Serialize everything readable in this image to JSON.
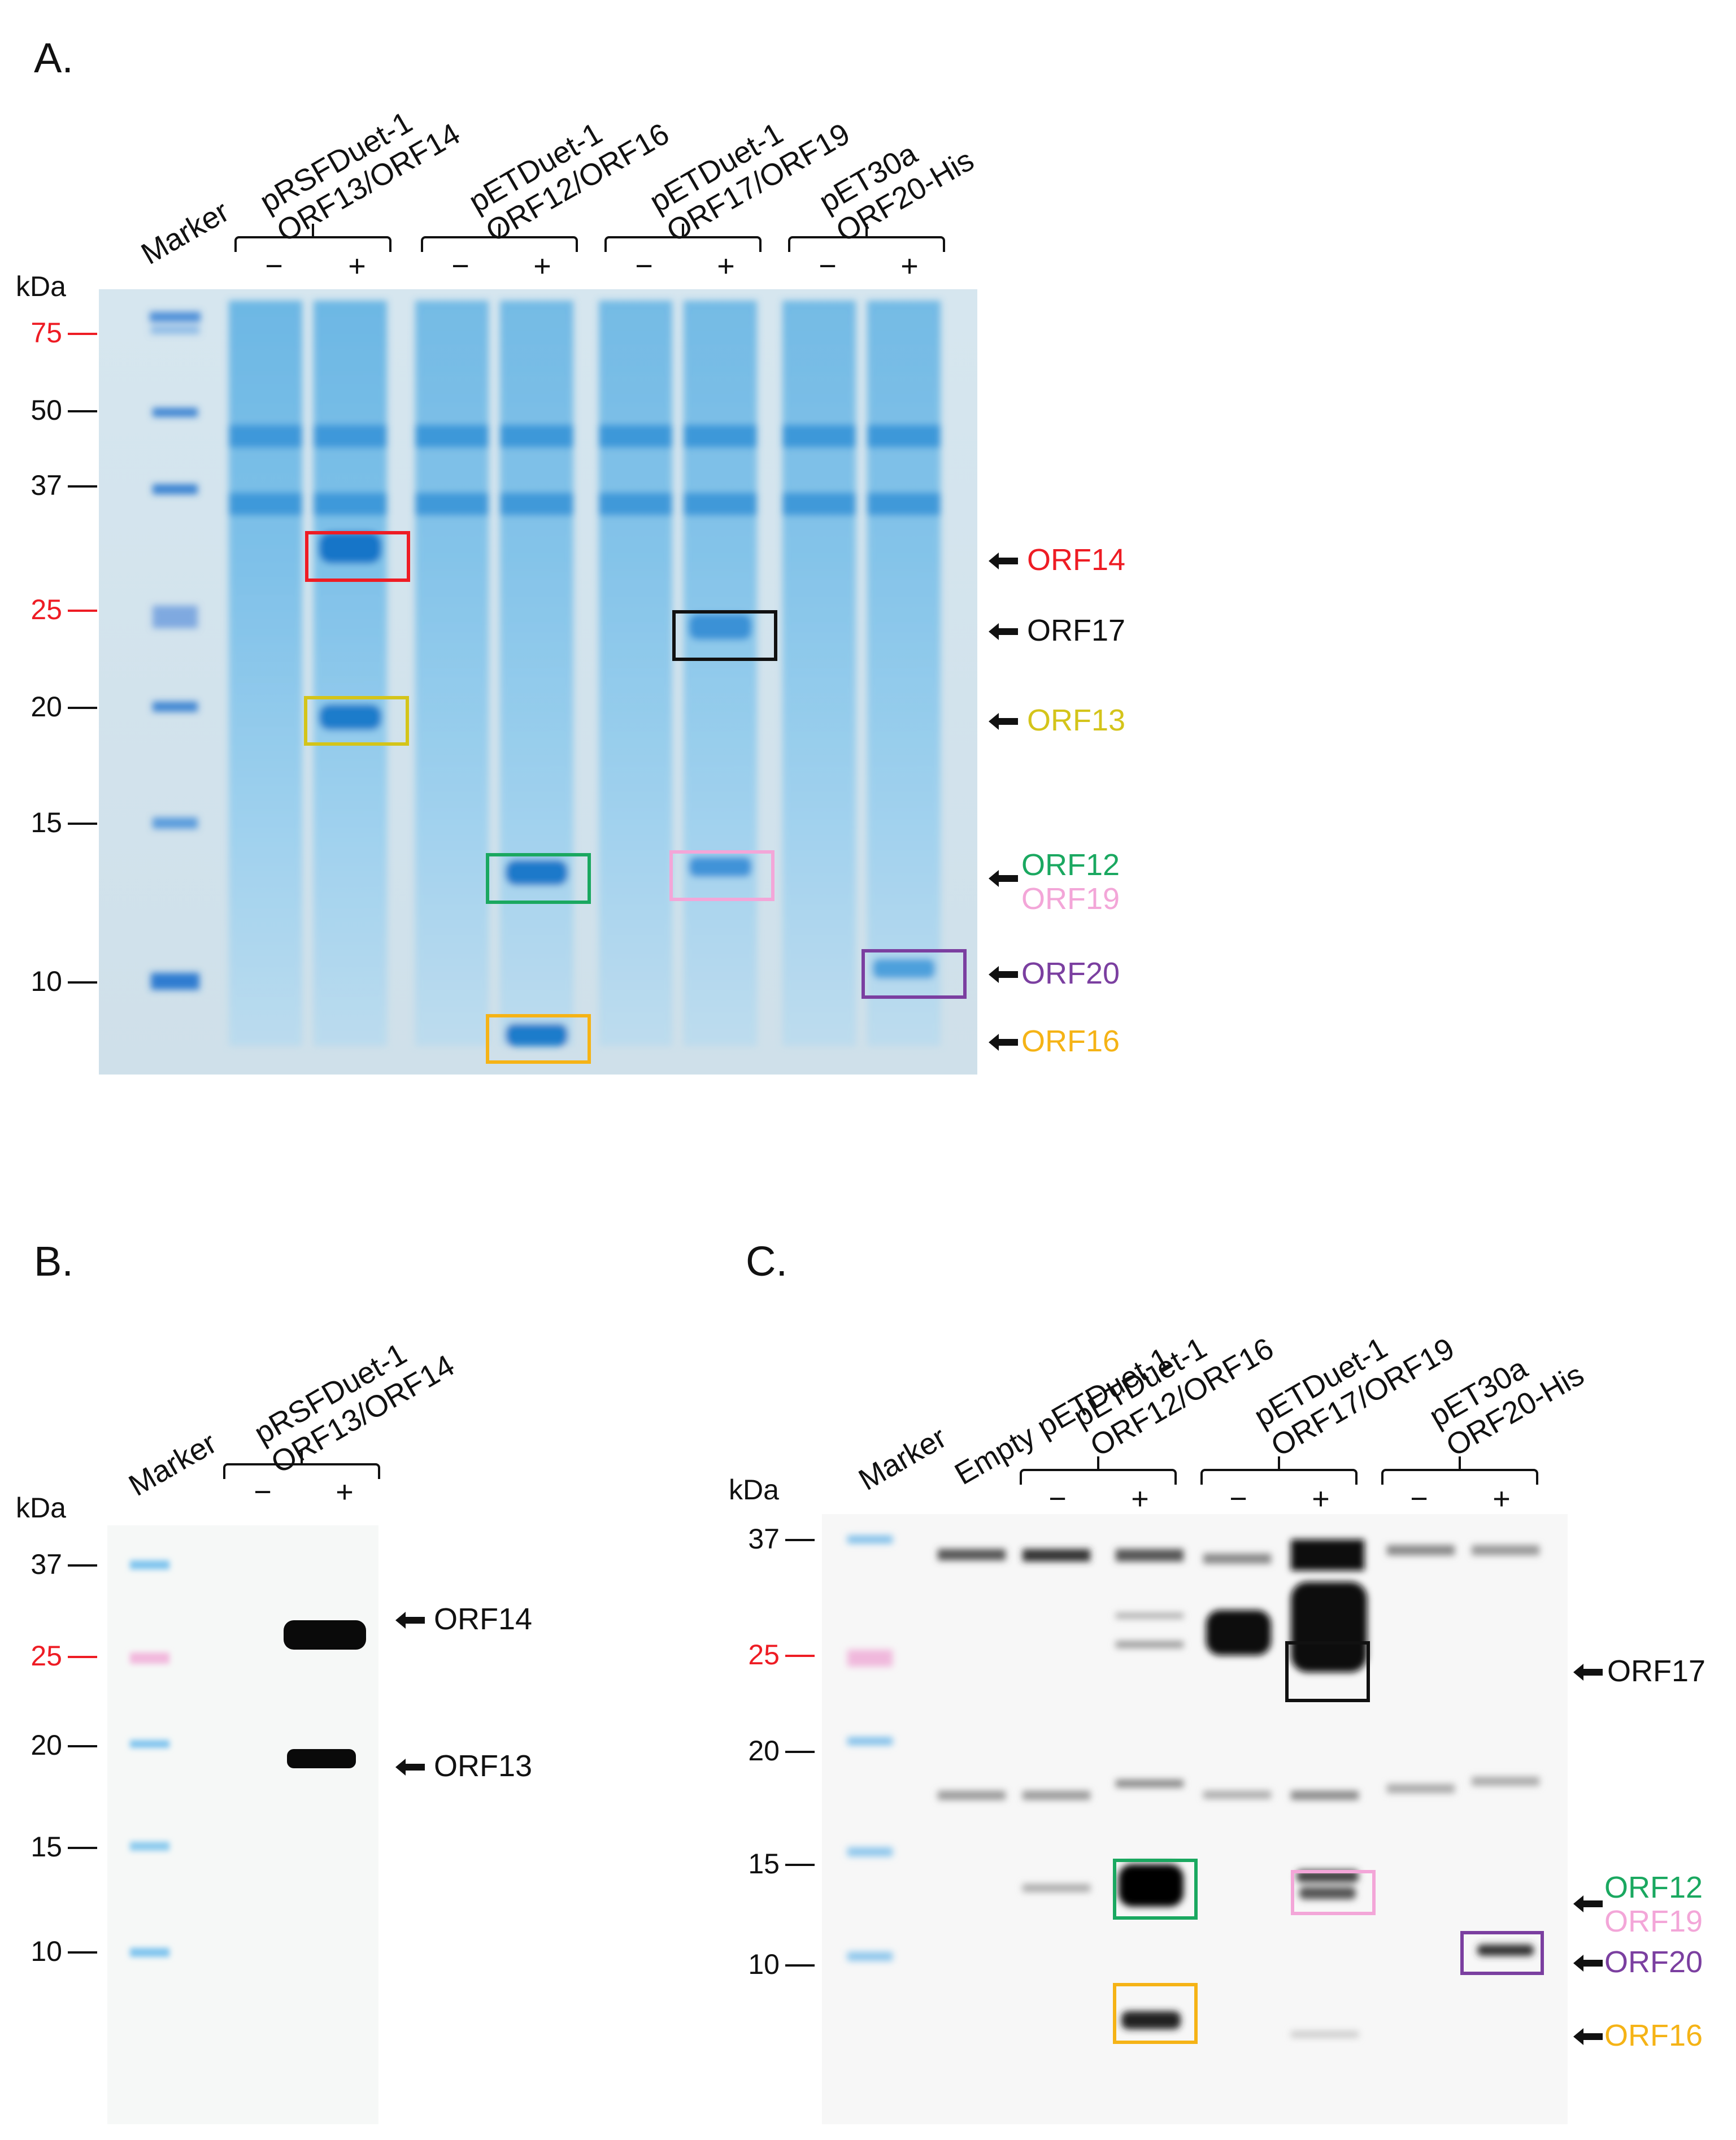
{
  "panels": {
    "A": {
      "label": "A.",
      "lanes": {
        "marker": "Marker",
        "g1": [
          "pRSFDuet-1",
          "ORF13/ORF14"
        ],
        "g2": [
          "pETDuet-1",
          "ORF12/ORF16"
        ],
        "g3": [
          "pETDuet-1",
          "ORF17/ORF19"
        ],
        "g4": [
          "pET30a",
          "ORF20-His"
        ]
      },
      "signs": [
        "−",
        "+",
        "−",
        "+",
        "−",
        "+",
        "−",
        "+"
      ],
      "kda": "kDa",
      "ladder": [
        "75",
        "50",
        "37",
        "25",
        "20",
        "15",
        "10"
      ],
      "bands": [
        "ORF14",
        "ORF17",
        "ORF13",
        "ORF12",
        "ORF19",
        "ORF20",
        "ORF16"
      ]
    },
    "B": {
      "label": "B.",
      "lanes": {
        "marker": "Marker",
        "g1": [
          "pRSFDuet-1",
          "ORF13/ORF14"
        ]
      },
      "signs": [
        "−",
        "+"
      ],
      "kda": "kDa",
      "ladder": [
        "37",
        "25",
        "20",
        "15",
        "10"
      ],
      "bands": [
        "ORF14",
        "ORF13"
      ]
    },
    "C": {
      "label": "C.",
      "lanes": {
        "marker": "Marker",
        "empty": "Empty pETDuet-1",
        "g1": [
          "pETDuet-1",
          "ORF12/ORF16"
        ],
        "g2": [
          "pETDuet-1",
          "ORF17/ORF19"
        ],
        "g3": [
          "pET30a",
          "ORF20-His"
        ]
      },
      "signs": [
        "−",
        "+",
        "−",
        "+",
        "−",
        "+"
      ],
      "kda": "kDa",
      "ladder": [
        "37",
        "25",
        "20",
        "15",
        "10"
      ],
      "bands": [
        "ORF17",
        "ORF12",
        "ORF19",
        "ORF20",
        "ORF16"
      ]
    }
  },
  "colors": {
    "ORF14": "#ee1c24",
    "ORF17": "#111111",
    "ORF13": "#d4c41a",
    "ORF12": "#1aa860",
    "ORF19": "#f3a6d8",
    "ORF20": "#7b3fa0",
    "ORF16": "#f5b316",
    "red_kda": "#ee1c24"
  }
}
